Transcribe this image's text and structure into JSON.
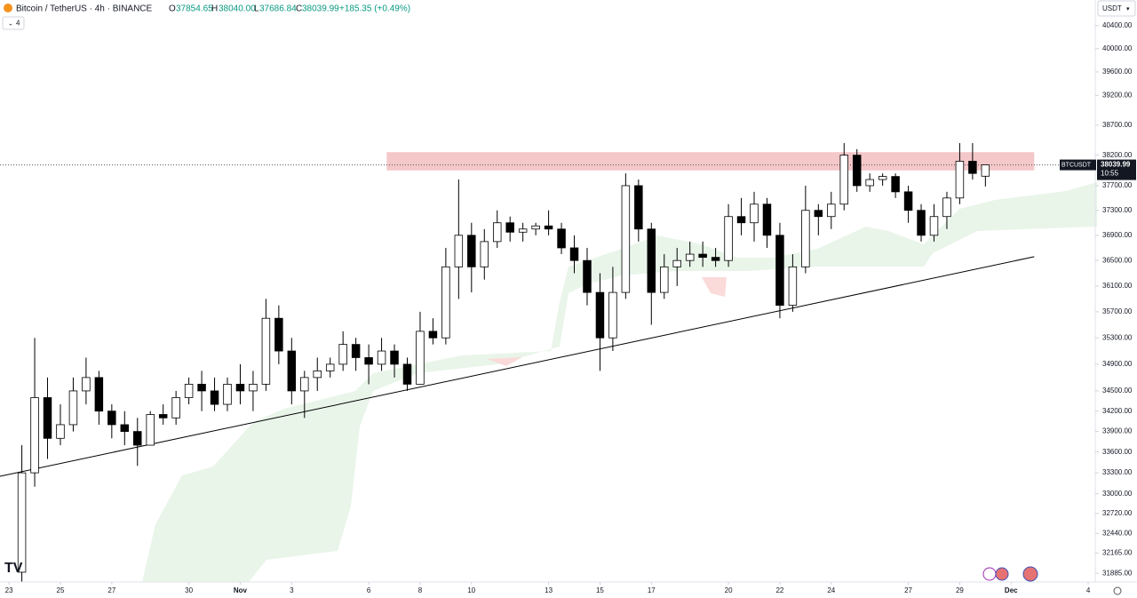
{
  "header": {
    "symbol": "Bitcoin / TetherUS · 4h · BINANCE",
    "o_label": "O",
    "o": "37854.65",
    "h_label": "H",
    "h": "38040.00",
    "l_label": "L",
    "l": "37686.84",
    "c_label": "C",
    "c": "38039.99",
    "change": "+185.35 (+0.49%)",
    "indicators": "4",
    "currency": "USDT",
    "ticker": "BTCUSDT",
    "countdown": "10:55"
  },
  "chart_data": {
    "type": "candlestick",
    "log_scale": true,
    "ylim": [
      31765,
      40850
    ],
    "xlim": [
      -0.35,
      42.24
    ],
    "colors": {
      "up": "#ffffff",
      "down": "#000000",
      "border": "#000000",
      "zone": "#f4c7c9",
      "trend": "#000000"
    },
    "yticks": [
      {
        "value": 40400,
        "label": "40400.00"
      },
      {
        "value": 40000,
        "label": "40000.00"
      },
      {
        "value": 39600,
        "label": "39600.00"
      },
      {
        "value": 39200,
        "label": "39200.00"
      },
      {
        "value": 38700,
        "label": "38700.00"
      },
      {
        "value": 38200,
        "label": "38200.00"
      },
      {
        "value": 37700,
        "label": "37700.00"
      },
      {
        "value": 37300,
        "label": "37300.00"
      },
      {
        "value": 36900,
        "label": "36900.00"
      },
      {
        "value": 36500,
        "label": "36500.00"
      },
      {
        "value": 36100,
        "label": "36100.00"
      },
      {
        "value": 35700,
        "label": "35700.00"
      },
      {
        "value": 35300,
        "label": "35300.00"
      },
      {
        "value": 34900,
        "label": "34900.00"
      },
      {
        "value": 34500,
        "label": "34500.00"
      },
      {
        "value": 34200,
        "label": "34200.00"
      },
      {
        "value": 33900,
        "label": "33900.00"
      },
      {
        "value": 33600,
        "label": "33600.00"
      },
      {
        "value": 33300,
        "label": "33300.00"
      },
      {
        "value": 33000,
        "label": "33000.00"
      },
      {
        "value": 32720,
        "label": "32720.00"
      },
      {
        "value": 32440,
        "label": "32440.00"
      },
      {
        "value": 32165,
        "label": "32165.00"
      },
      {
        "value": 31885,
        "label": "31885.00"
      }
    ],
    "xticks": [
      {
        "value": 0,
        "label": "23"
      },
      {
        "value": 2,
        "label": "25"
      },
      {
        "value": 4,
        "label": "27"
      },
      {
        "value": 7,
        "label": "30"
      },
      {
        "value": 9,
        "label": "Nov"
      },
      {
        "value": 11,
        "label": "3"
      },
      {
        "value": 14,
        "label": "6"
      },
      {
        "value": 16,
        "label": "8"
      },
      {
        "value": 18,
        "label": "10"
      },
      {
        "value": 21,
        "label": "13"
      },
      {
        "value": 23,
        "label": "15"
      },
      {
        "value": 25,
        "label": "17"
      },
      {
        "value": 28,
        "label": "20"
      },
      {
        "value": 30,
        "label": "22"
      },
      {
        "value": 32,
        "label": "24"
      },
      {
        "value": 35,
        "label": "27"
      },
      {
        "value": 37,
        "label": "29"
      },
      {
        "value": 39,
        "label": "Dec"
      },
      {
        "value": 42,
        "label": "4"
      }
    ],
    "zone": {
      "x": [
        14.7,
        39.9
      ],
      "y": [
        37950,
        38250
      ]
    },
    "trendline": {
      "x": [
        -0.35,
        39.9
      ],
      "y": [
        33250,
        36560
      ]
    },
    "last_price": 38039.99,
    "x": [
      0.5,
      1,
      1.5,
      2,
      2.5,
      3,
      3.5,
      4,
      4.5,
      5,
      5.5,
      6,
      6.5,
      7,
      7.5,
      8,
      8.5,
      9,
      9.5,
      10,
      10.5,
      11,
      11.5,
      12,
      12.5,
      13,
      13.5,
      14,
      14.5,
      15,
      15.5,
      16,
      16.5,
      17,
      17.5,
      18,
      18.5,
      19,
      19.5,
      20,
      20.5,
      21,
      21.5,
      22,
      22.5,
      23,
      23.5,
      24,
      24.5,
      25,
      25.5,
      26,
      26.5,
      27,
      27.5,
      28,
      28.5,
      29,
      29.5,
      30,
      30.5,
      31,
      31.5,
      32,
      32.5,
      33,
      33.5,
      34,
      34.5,
      35,
      35.5,
      36,
      36.5,
      37,
      37.5,
      38
    ],
    "open": [
      31900,
      33300,
      34400,
      33800,
      34000,
      34500,
      34700,
      34200,
      34000,
      33900,
      33700,
      34150,
      34100,
      34400,
      34600,
      34500,
      34300,
      34600,
      34500,
      34600,
      35600,
      35100,
      34500,
      34700,
      34800,
      34900,
      35200,
      35000,
      34900,
      35100,
      34900,
      34600,
      35400,
      35300,
      36400,
      36900,
      36400,
      36800,
      37100,
      36950,
      37000,
      37050,
      37000,
      36700,
      36500,
      36000,
      35300,
      36000,
      37700,
      37000,
      36000,
      36400,
      36500,
      36600,
      36550,
      36500,
      37200,
      37100,
      37400,
      36900,
      35800,
      36400,
      37300,
      37200,
      37400,
      38200,
      37700,
      37800,
      37850,
      37600,
      37300,
      36900,
      37200,
      37500,
      38100,
      37854.65
    ],
    "high": [
      33700,
      35300,
      34700,
      34300,
      34700,
      35000,
      34800,
      34300,
      34200,
      34100,
      34200,
      34300,
      34500,
      34700,
      34800,
      34700,
      34700,
      34900,
      34800,
      35900,
      35800,
      35300,
      34800,
      35000,
      35000,
      35400,
      35300,
      35200,
      35300,
      35200,
      35000,
      35700,
      35600,
      36700,
      37800,
      37100,
      37000,
      37300,
      37200,
      37100,
      37100,
      37300,
      37100,
      36900,
      36700,
      36300,
      36400,
      37900,
      37800,
      37100,
      36600,
      36700,
      36800,
      36800,
      36700,
      37400,
      37500,
      37600,
      37500,
      37100,
      36600,
      37700,
      37400,
      37600,
      38400,
      38300,
      37900,
      37900,
      37900,
      37700,
      37400,
      37400,
      37600,
      38400,
      38400,
      38040
    ],
    "low": [
      31760,
      33100,
      33500,
      33700,
      33900,
      34300,
      34000,
      33800,
      33700,
      33400,
      33700,
      34000,
      34000,
      34300,
      34200,
      34200,
      34200,
      34300,
      34200,
      34500,
      34900,
      34300,
      34100,
      34500,
      34700,
      34800,
      34800,
      34600,
      34800,
      34700,
      34500,
      34600,
      35200,
      35200,
      35900,
      36000,
      36200,
      36700,
      36800,
      36800,
      36900,
      36900,
      36600,
      36300,
      35800,
      34800,
      35100,
      35900,
      36800,
      35500,
      35900,
      36100,
      36400,
      36400,
      36400,
      36400,
      36900,
      36800,
      36700,
      35600,
      35700,
      36300,
      36900,
      37000,
      37300,
      37600,
      37600,
      37700,
      37500,
      37100,
      36800,
      36800,
      37000,
      37400,
      37800,
      37686.84
    ],
    "close": [
      33300,
      34400,
      33800,
      34000,
      34500,
      34700,
      34200,
      34000,
      33900,
      33700,
      34150,
      34100,
      34400,
      34600,
      34500,
      34300,
      34600,
      34500,
      34600,
      35600,
      35100,
      34500,
      34700,
      34800,
      34900,
      35200,
      35000,
      34900,
      35100,
      34900,
      34600,
      35400,
      35300,
      36400,
      36900,
      36400,
      36800,
      37100,
      36950,
      37000,
      37050,
      37000,
      36700,
      36500,
      36000,
      35300,
      36000,
      37700,
      37000,
      36000,
      36400,
      36500,
      36600,
      36550,
      36500,
      37200,
      37100,
      37400,
      36900,
      35800,
      36400,
      37300,
      37200,
      37400,
      38200,
      37700,
      37800,
      37850,
      37600,
      37300,
      36900,
      37200,
      37500,
      38100,
      37900,
      38039.99
    ]
  }
}
